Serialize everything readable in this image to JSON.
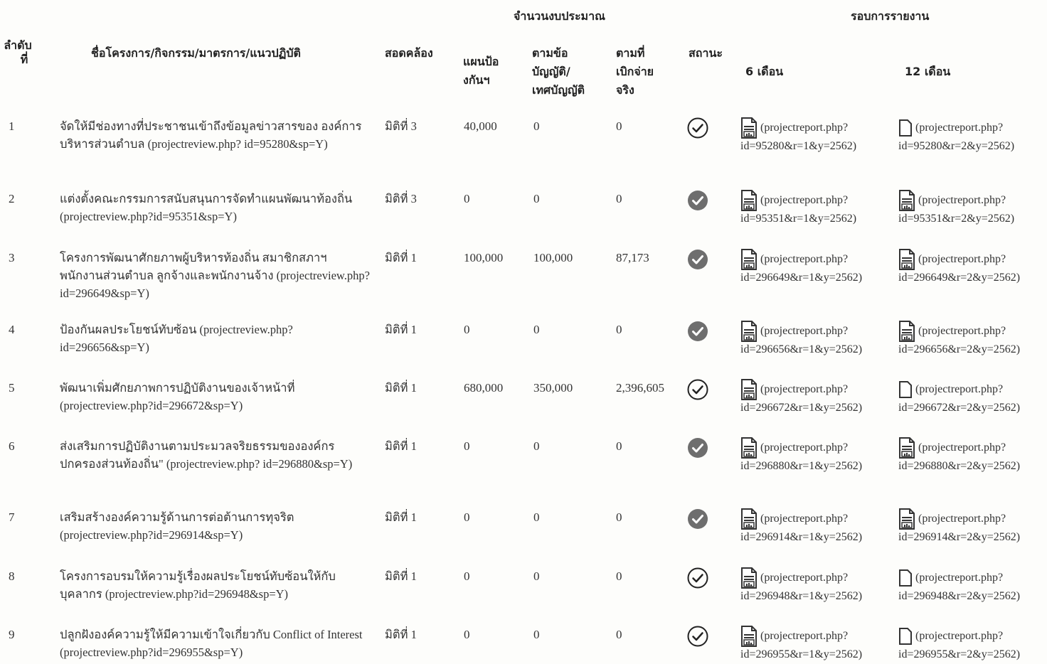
{
  "header": {
    "group_budget": "จำนวนงบประมาณ",
    "group_report": "รอบการรายงาน",
    "col_no_line1": "ลำดับ",
    "col_no_line2": "ที่",
    "col_name": "ชื่อโครงการ/กิจกรรม/มาตรการ/แนวปฏิบัติ",
    "col_consistent": "สอดคล้อง",
    "col_plan_line1": "แผนป้อ",
    "col_plan_line2": "งกันฯ",
    "col_law_line1": "ตามข้อ",
    "col_law_line2": "บัญญัติ/",
    "col_law_line3": "เทศบัญญัติ",
    "col_actual_line1": "ตามที่",
    "col_actual_line2": "เบิกจ่าย",
    "col_actual_line3": "จริง",
    "col_status": "สถานะ",
    "col_6m": "6 เดือน",
    "col_12m": "12 เดือน"
  },
  "rows": [
    {
      "no": "1",
      "name": "จัดให้มีช่องทางที่ประชาชนเข้าถึงข้อมูลข่าวสารของ องค์การบริหารส่วนตำบล (projectreview.php? id=95280&sp=Y)",
      "dim": "มิติที่ 3",
      "plan": "40,000",
      "law": "0",
      "actual": "0",
      "status": "open",
      "r6": {
        "icon": "report-filled",
        "l1": "(projectreport.php?",
        "l2": "id=95280&r=1&y=2562)"
      },
      "r12": {
        "icon": "report-empty",
        "l1": "(projectreport.php?",
        "l2": "id=95280&r=2&y=2562)"
      }
    },
    {
      "no": "2",
      "name": "แต่งตั้งคณะกรรมการสนับสนุนการจัดทำแผนพัฒนาท้องถิ่น (projectreview.php?id=95351&sp=Y)",
      "dim": "มิติที่ 3",
      "plan": "0",
      "law": "0",
      "actual": "0",
      "status": "done",
      "r6": {
        "icon": "report-filled",
        "l1": "(projectreport.php?",
        "l2": "id=95351&r=1&y=2562)"
      },
      "r12": {
        "icon": "report-filled",
        "l1": "(projectreport.php?",
        "l2": "id=95351&r=2&y=2562)"
      }
    },
    {
      "no": "3",
      "name": "โครงการพัฒนาศักยภาพผู้บริหารท้องถิ่น สมาชิกสภาฯ พนักงานส่วนตำบล ลูกจ้างและพนักงานจ้าง (projectreview.php?id=296649&sp=Y)",
      "dim": "มิติที่ 1",
      "plan": "100,000",
      "law": "100,000",
      "actual": "87,173",
      "status": "done",
      "r6": {
        "icon": "report-filled",
        "l1": "(projectreport.php?",
        "l2": "id=296649&r=1&y=2562)"
      },
      "r12": {
        "icon": "report-filled",
        "l1": "(projectreport.php?",
        "l2": "id=296649&r=2&y=2562)"
      }
    },
    {
      "no": "4",
      "name": "ป้องกันผลประโยชน์ทับซ้อน (projectreview.php? id=296656&sp=Y)",
      "dim": "มิติที่ 1",
      "plan": "0",
      "law": "0",
      "actual": "0",
      "status": "done",
      "r6": {
        "icon": "report-filled",
        "l1": "(projectreport.php?",
        "l2": "id=296656&r=1&y=2562)"
      },
      "r12": {
        "icon": "report-filled",
        "l1": "(projectreport.php?",
        "l2": "id=296656&r=2&y=2562)"
      }
    },
    {
      "no": "5",
      "name": "พัฒนาเพิ่มศักยภาพการปฏิบัติงานของเจ้าหน้าที่ (projectreview.php?id=296672&sp=Y)",
      "dim": "มิติที่ 1",
      "plan": "680,000",
      "law": "350,000",
      "actual": "2,396,605",
      "status": "open",
      "r6": {
        "icon": "report-filled",
        "l1": "(projectreport.php?",
        "l2": "id=296672&r=1&y=2562)"
      },
      "r12": {
        "icon": "report-empty",
        "l1": "(projectreport.php?",
        "l2": "id=296672&r=2&y=2562)"
      }
    },
    {
      "no": "6",
      "name": "ส่งเสริมการปฏิบัติงานตามประมวลจริยธรรมขององค์กร ปกครองส่วนท้องถิ่น\" (projectreview.php? id=296880&sp=Y)",
      "dim": "มิติที่ 1",
      "plan": "0",
      "law": "0",
      "actual": "0",
      "status": "done",
      "r6": {
        "icon": "report-filled",
        "l1": "(projectreport.php?",
        "l2": "id=296880&r=1&y=2562)"
      },
      "r12": {
        "icon": "report-filled",
        "l1": "(projectreport.php?",
        "l2": "id=296880&r=2&y=2562)"
      }
    },
    {
      "no": "7",
      "name": "เสริมสร้างองค์ความรู้ด้านการต่อต้านการทุจริต (projectreview.php?id=296914&sp=Y)",
      "dim": "มิติที่ 1",
      "plan": "0",
      "law": "0",
      "actual": "0",
      "status": "done",
      "r6": {
        "icon": "report-filled",
        "l1": "(projectreport.php?",
        "l2": "id=296914&r=1&y=2562)"
      },
      "r12": {
        "icon": "report-filled",
        "l1": "(projectreport.php?",
        "l2": "id=296914&r=2&y=2562)"
      }
    },
    {
      "no": "8",
      "name": "โครงการอบรมให้ความรู้เรื่องผลประโยชน์ทับซ้อนให้กับ บุคลากร (projectreview.php?id=296948&sp=Y)",
      "dim": "มิติที่ 1",
      "plan": "0",
      "law": "0",
      "actual": "0",
      "status": "open",
      "r6": {
        "icon": "report-filled",
        "l1": "(projectreport.php?",
        "l2": "id=296948&r=1&y=2562)"
      },
      "r12": {
        "icon": "report-empty",
        "l1": "(projectreport.php?",
        "l2": "id=296948&r=2&y=2562)"
      }
    },
    {
      "no": "9",
      "name": "ปลูกฝังองค์ความรู้ให้มีความเข้าใจเกี่ยวกับ Conflict of Interest (projectreview.php?id=296955&sp=Y)",
      "dim": "มิติที่ 1",
      "plan": "0",
      "law": "0",
      "actual": "0",
      "status": "open",
      "r6": {
        "icon": "report-filled",
        "l1": "(projectreport.php?",
        "l2": "id=296955&r=1&y=2562)"
      },
      "r12": {
        "icon": "report-empty",
        "l1": "(projectreport.php?",
        "l2": "id=296955&r=2&y=2562)"
      }
    }
  ]
}
